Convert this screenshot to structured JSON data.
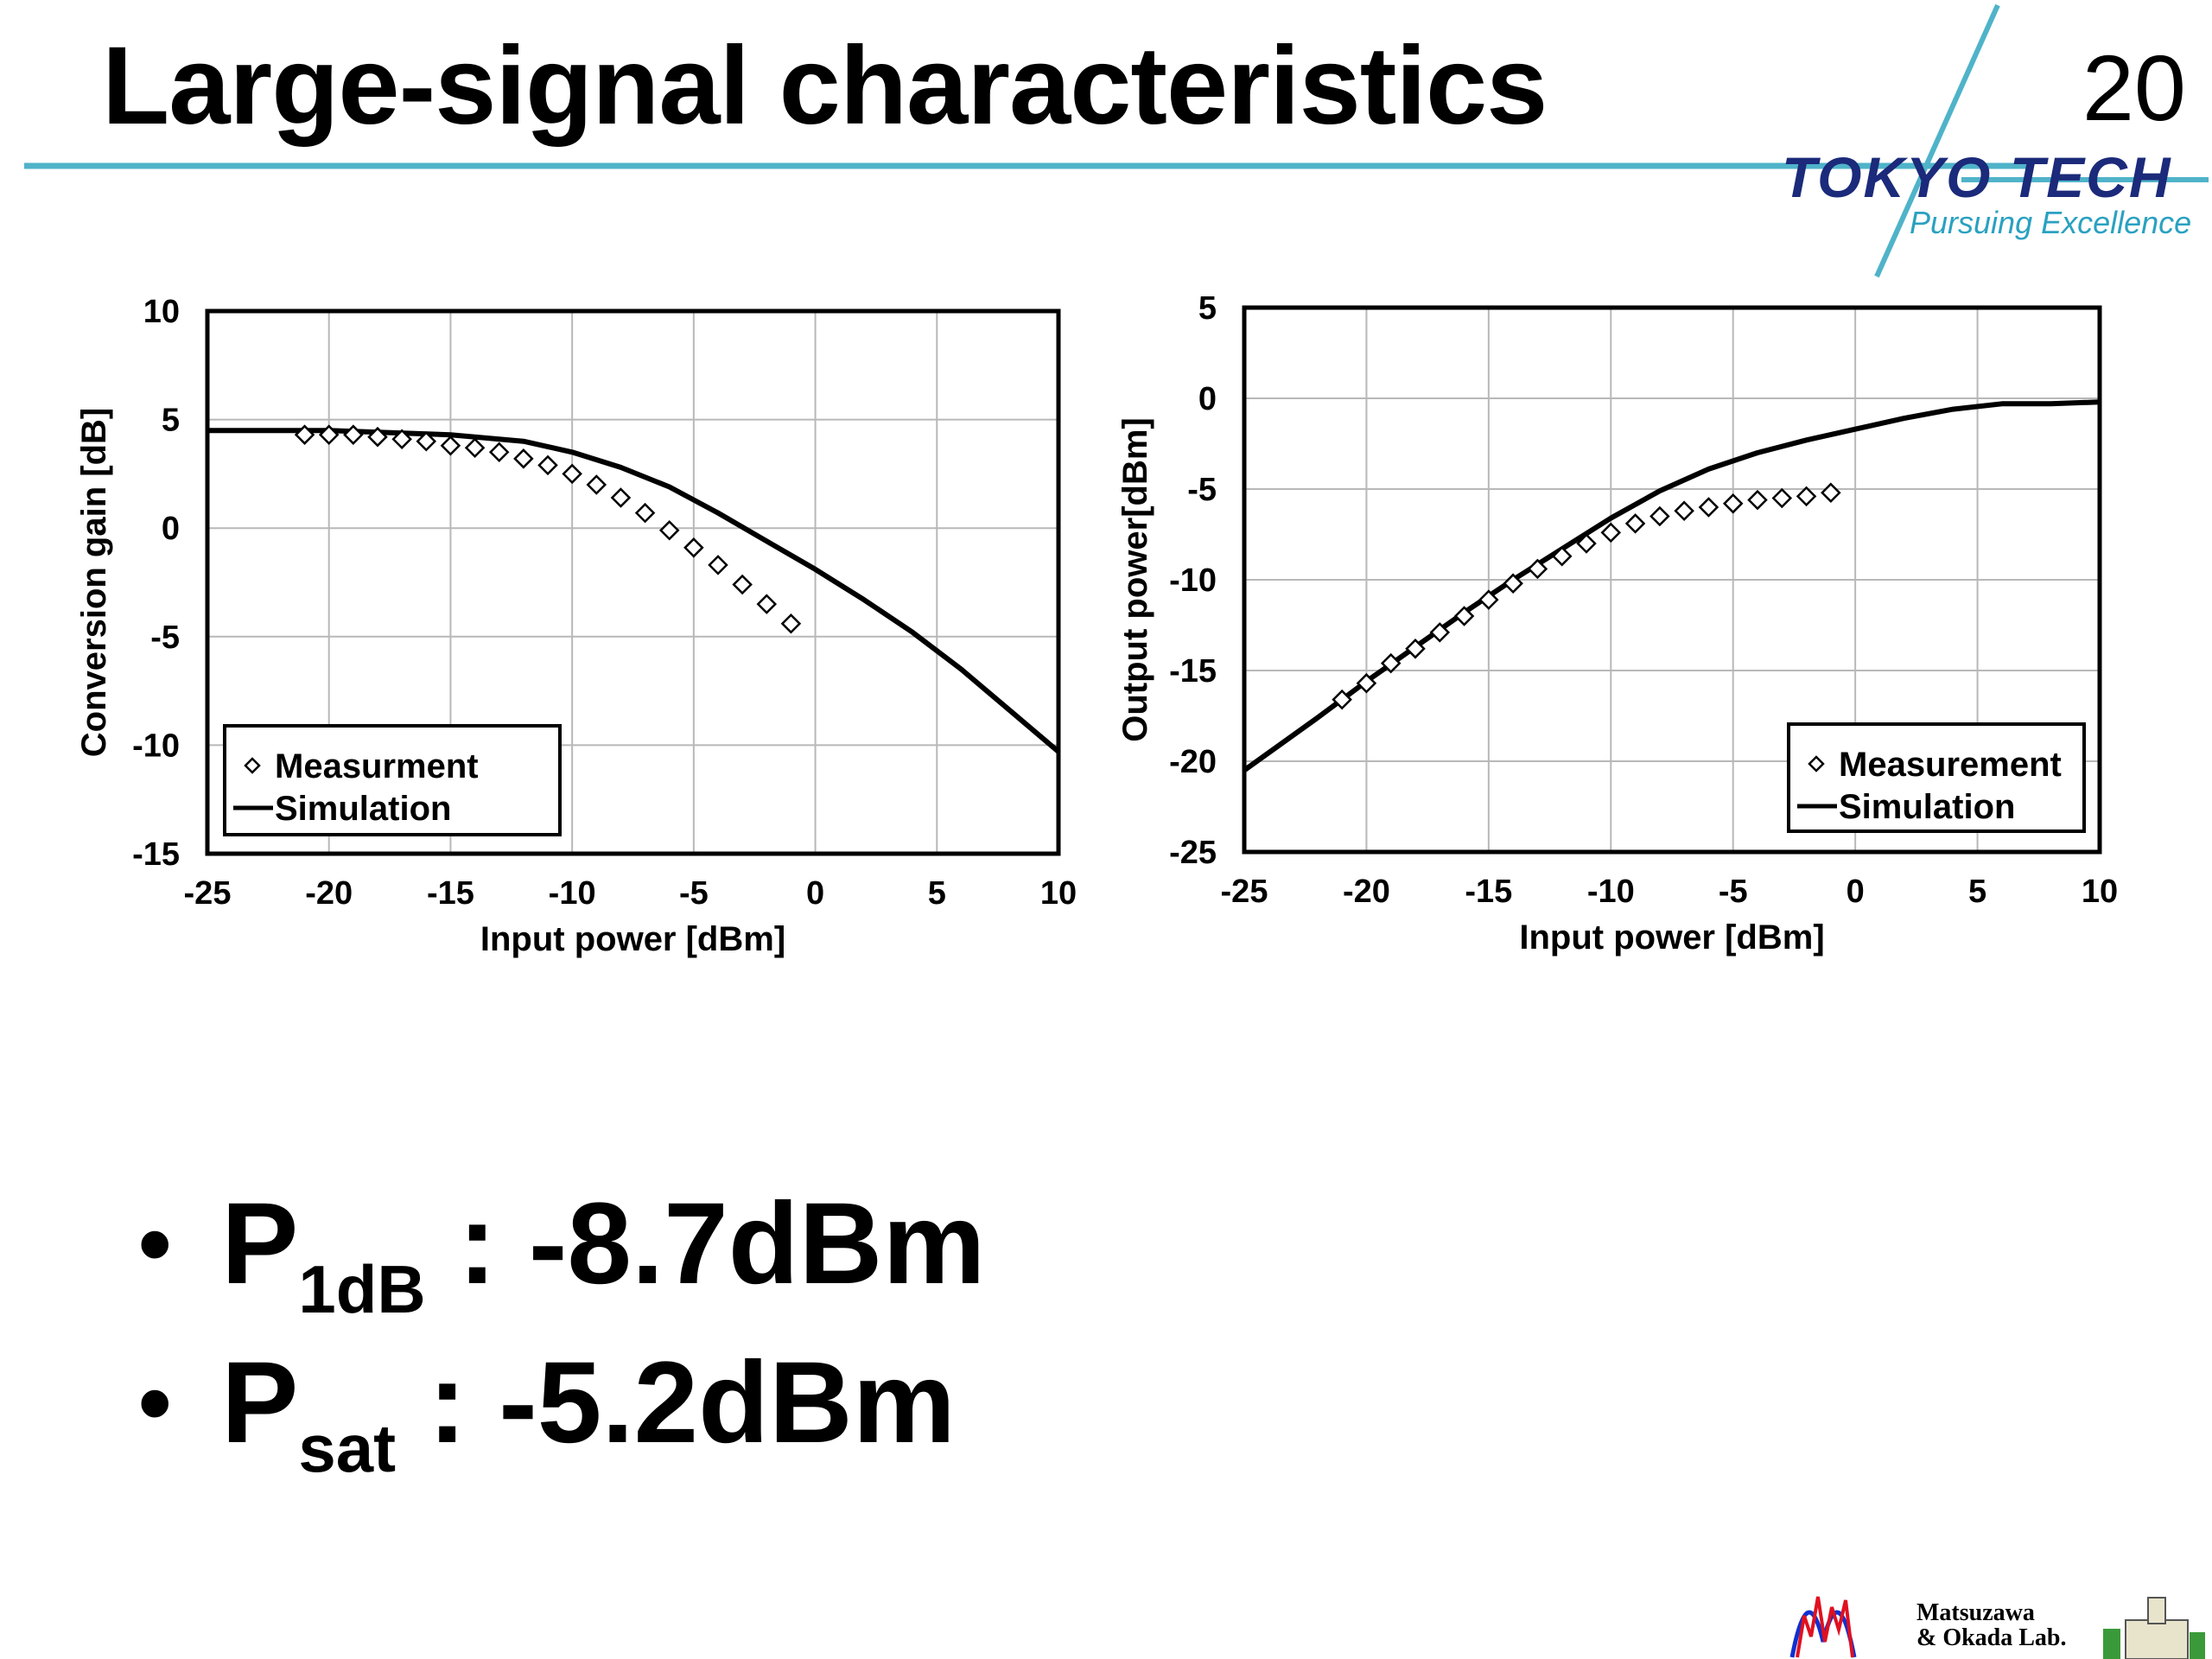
{
  "slide": {
    "title": "Large-signal characteristics",
    "page_number": "20",
    "logo": {
      "name": "TOKYO TECH",
      "tagline": "Pursuing Excellence",
      "accent": "#4fb3c9",
      "brand": "#1b2a7a"
    },
    "bullets": [
      {
        "main": "P",
        "sub": "1dB",
        "rest": " : -8.7dBm"
      },
      {
        "main": "P",
        "sub": "sat",
        "rest": " : -5.2dBm"
      }
    ],
    "lab_logo": {
      "line1": "Matsuzawa",
      "line2": "& Okada Lab."
    }
  },
  "chart_data": [
    {
      "type": "line",
      "xlabel": "Input power [dBm]",
      "ylabel": "Conversion gain [dB]",
      "xlim": [
        -25,
        10
      ],
      "ylim": [
        -15,
        10
      ],
      "xticks": [
        -25,
        -20,
        -15,
        -10,
        -5,
        0,
        5,
        10
      ],
      "yticks": [
        -15,
        -10,
        -5,
        0,
        5,
        10
      ],
      "grid": true,
      "legend_position": "bottom-left",
      "series": [
        {
          "name": "Measurment",
          "style": "diamond-markers",
          "x": [
            -21,
            -20,
            -19,
            -18,
            -17,
            -16,
            -15,
            -14,
            -13,
            -12,
            -11,
            -10,
            -9,
            -8,
            -7,
            -6,
            -5,
            -4,
            -3,
            -2,
            -1
          ],
          "y": [
            4.3,
            4.3,
            4.3,
            4.2,
            4.1,
            4.0,
            3.8,
            3.7,
            3.5,
            3.2,
            2.9,
            2.5,
            2.0,
            1.4,
            0.7,
            -0.1,
            -0.9,
            -1.7,
            -2.6,
            -3.5,
            -4.4
          ]
        },
        {
          "name": "Simulation",
          "style": "solid-line",
          "x": [
            -25,
            -20,
            -15,
            -12,
            -10,
            -8,
            -6,
            -4,
            -2,
            0,
            2,
            4,
            6,
            8,
            10
          ],
          "y": [
            4.5,
            4.5,
            4.3,
            4.0,
            3.5,
            2.8,
            1.9,
            0.7,
            -0.6,
            -1.9,
            -3.3,
            -4.8,
            -6.5,
            -8.4,
            -10.3
          ]
        }
      ]
    },
    {
      "type": "line",
      "xlabel": "Input power [dBm]",
      "ylabel": "Output power[dBm]",
      "xlim": [
        -25,
        10
      ],
      "ylim": [
        -25,
        5
      ],
      "xticks": [
        -25,
        -20,
        -15,
        -10,
        -5,
        0,
        5,
        10
      ],
      "yticks": [
        -25,
        -20,
        -15,
        -10,
        -5,
        0,
        5
      ],
      "grid": true,
      "legend_position": "bottom-right",
      "series": [
        {
          "name": "Measurement",
          "style": "diamond-markers",
          "x": [
            -21,
            -20,
            -19,
            -18,
            -17,
            -16,
            -15,
            -14,
            -13,
            -12,
            -11,
            -10,
            -9,
            -8,
            -7,
            -6,
            -5,
            -4,
            -3,
            -2,
            -1
          ],
          "y": [
            -16.6,
            -15.7,
            -14.6,
            -13.8,
            -12.9,
            -12.0,
            -11.1,
            -10.2,
            -9.4,
            -8.7,
            -8.0,
            -7.4,
            -6.9,
            -6.5,
            -6.2,
            -6.0,
            -5.8,
            -5.6,
            -5.5,
            -5.4,
            -5.2
          ]
        },
        {
          "name": "Simulation",
          "style": "solid-line",
          "x": [
            -25,
            -22,
            -20,
            -18,
            -16,
            -14,
            -12,
            -10,
            -8,
            -6,
            -4,
            -2,
            0,
            2,
            4,
            6,
            8,
            10
          ],
          "y": [
            -20.5,
            -17.6,
            -15.6,
            -13.7,
            -11.8,
            -10.0,
            -8.3,
            -6.6,
            -5.1,
            -3.9,
            -3.0,
            -2.3,
            -1.7,
            -1.1,
            -0.6,
            -0.3,
            -0.3,
            -0.2
          ]
        }
      ]
    }
  ]
}
